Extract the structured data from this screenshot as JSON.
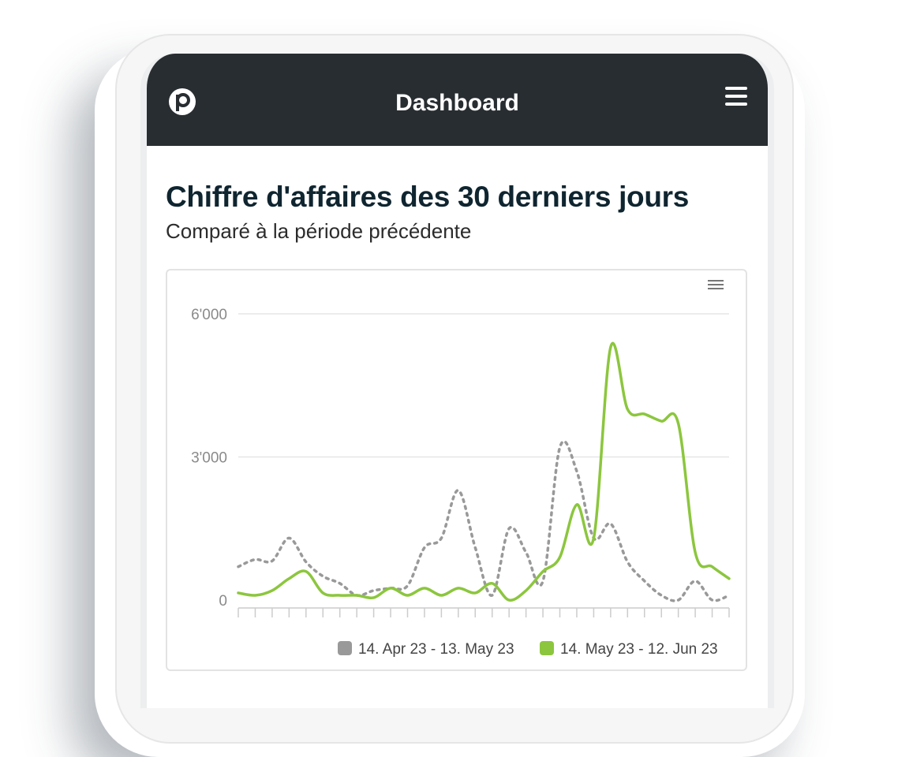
{
  "header": {
    "title": "Dashboard",
    "logo_icon": "brand-p-logo",
    "menu_icon": "hamburger-menu-icon"
  },
  "page": {
    "heading": "Chiffre d'affaires des 30 derniers jours",
    "subheading": "Comparé à la période précédente"
  },
  "chart_menu_icon": "chart-options-icon",
  "chart_data": {
    "type": "line",
    "title": "",
    "xlabel": "",
    "ylabel": "",
    "ylim": [
      0,
      6000
    ],
    "y_ticks": [
      "6'000",
      "3'000",
      "0"
    ],
    "y_tick_values": [
      6000,
      3000,
      0
    ],
    "x": [
      1,
      2,
      3,
      4,
      5,
      6,
      7,
      8,
      9,
      10,
      11,
      12,
      13,
      14,
      15,
      16,
      17,
      18,
      19,
      20,
      21,
      22,
      23,
      24,
      25,
      26,
      27,
      28,
      29,
      30
    ],
    "grid": "horizontal",
    "legend_position": "bottom-right",
    "series": [
      {
        "name": "14. Apr 23 - 13. May 23",
        "color": "#999999",
        "style": "dotted",
        "values": [
          700,
          850,
          820,
          1300,
          800,
          500,
          350,
          100,
          200,
          250,
          300,
          1100,
          1300,
          2300,
          1100,
          100,
          1500,
          1000,
          400,
          3200,
          2700,
          1300,
          1600,
          800,
          400,
          100,
          0,
          400,
          0,
          100
        ]
      },
      {
        "name": "14. May 23 - 12. Jun 23",
        "color": "#8cc63e",
        "style": "solid",
        "values": [
          150,
          100,
          200,
          450,
          600,
          150,
          100,
          100,
          50,
          250,
          100,
          250,
          100,
          250,
          150,
          350,
          0,
          200,
          600,
          900,
          2000,
          1300,
          5300,
          4000,
          3900,
          3750,
          3700,
          1000,
          700,
          450
        ]
      }
    ]
  }
}
